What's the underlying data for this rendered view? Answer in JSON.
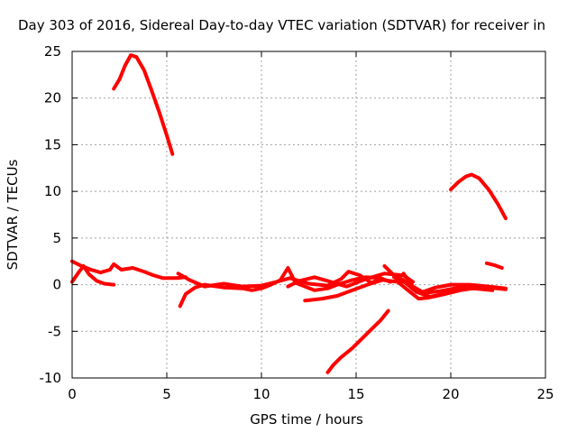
{
  "chart_data": {
    "type": "scatter",
    "title": "Day 303 of 2016, Sidereal Day-to-day VTEC variation (SDTVAR) for receiver in",
    "xlabel": "GPS time / hours",
    "ylabel": "SDTVAR / TECUs",
    "xlim": [
      0,
      25
    ],
    "ylim": [
      -10,
      25
    ],
    "xticks": [
      "0",
      "5",
      "10",
      "15",
      "20",
      "25"
    ],
    "yticks": [
      "-10",
      "-5",
      "0",
      "5",
      "10",
      "15",
      "20",
      "25"
    ],
    "grid": true,
    "series": [
      {
        "points": [
          [
            2.2,
            21.0
          ],
          [
            2.5,
            22.0
          ],
          [
            2.8,
            23.5
          ],
          [
            3.1,
            24.6
          ],
          [
            3.4,
            24.4
          ],
          [
            3.8,
            23.0
          ],
          [
            4.2,
            20.8
          ],
          [
            4.6,
            18.5
          ],
          [
            5.0,
            16.0
          ],
          [
            5.3,
            14.0
          ]
        ]
      },
      {
        "points": [
          [
            20.0,
            10.2
          ],
          [
            20.4,
            11.0
          ],
          [
            20.8,
            11.6
          ],
          [
            21.1,
            11.8
          ],
          [
            21.5,
            11.4
          ],
          [
            22.0,
            10.2
          ],
          [
            22.5,
            8.6
          ],
          [
            22.9,
            7.1
          ]
        ]
      },
      {
        "points": [
          [
            13.5,
            -9.4
          ],
          [
            13.8,
            -8.6
          ],
          [
            14.2,
            -7.8
          ],
          [
            14.8,
            -6.8
          ],
          [
            15.3,
            -5.8
          ],
          [
            15.8,
            -4.8
          ],
          [
            16.3,
            -3.8
          ],
          [
            16.7,
            -2.8
          ]
        ]
      },
      {
        "points": [
          [
            21.9,
            2.3
          ],
          [
            22.3,
            2.1
          ],
          [
            22.7,
            1.8
          ]
        ]
      },
      {
        "points": [
          [
            0.0,
            0.3
          ],
          [
            0.3,
            1.2
          ],
          [
            0.6,
            2.0
          ],
          [
            0.9,
            1.1
          ],
          [
            1.3,
            0.4
          ],
          [
            1.7,
            0.1
          ],
          [
            2.2,
            0.0
          ]
        ]
      },
      {
        "points": [
          [
            0.0,
            2.5
          ],
          [
            0.5,
            2.0
          ],
          [
            1.0,
            1.6
          ],
          [
            1.5,
            1.3
          ],
          [
            2.0,
            1.6
          ],
          [
            2.2,
            2.2
          ],
          [
            2.6,
            1.6
          ],
          [
            3.2,
            1.8
          ],
          [
            3.8,
            1.4
          ],
          [
            4.3,
            1.0
          ],
          [
            4.8,
            0.7
          ],
          [
            5.5,
            0.7
          ],
          [
            6.0,
            0.8
          ]
        ]
      },
      {
        "points": [
          [
            5.7,
            -2.3
          ],
          [
            6.0,
            -1.0
          ],
          [
            6.5,
            -0.3
          ],
          [
            7.0,
            0.0
          ],
          [
            8.0,
            -0.3
          ],
          [
            9.0,
            -0.4
          ],
          [
            9.5,
            -0.6
          ],
          [
            10.0,
            -0.4
          ],
          [
            10.5,
            0.0
          ],
          [
            11.0,
            0.5
          ],
          [
            11.4,
            1.8
          ],
          [
            11.8,
            0.2
          ],
          [
            12.3,
            -0.2
          ],
          [
            12.8,
            -0.6
          ],
          [
            13.5,
            -0.4
          ],
          [
            14.0,
            0.0
          ],
          [
            14.8,
            0.5
          ],
          [
            15.5,
            0.8
          ],
          [
            16.3,
            0.7
          ],
          [
            16.8,
            0.3
          ]
        ]
      },
      {
        "points": [
          [
            5.6,
            1.2
          ],
          [
            6.2,
            0.5
          ],
          [
            7.0,
            -0.2
          ],
          [
            8.0,
            0.1
          ],
          [
            9.0,
            -0.2
          ],
          [
            10.0,
            -0.1
          ],
          [
            10.8,
            0.3
          ],
          [
            11.5,
            0.7
          ],
          [
            12.5,
            0.1
          ],
          [
            13.5,
            -0.1
          ],
          [
            14.2,
            0.6
          ],
          [
            14.6,
            1.4
          ],
          [
            15.2,
            1.0
          ],
          [
            15.8,
            0.2
          ],
          [
            16.3,
            0.6
          ]
        ]
      },
      {
        "points": [
          [
            11.4,
            -0.2
          ],
          [
            12.0,
            0.4
          ],
          [
            12.8,
            0.8
          ],
          [
            13.5,
            0.4
          ],
          [
            14.5,
            -0.2
          ],
          [
            15.5,
            0.6
          ],
          [
            16.5,
            1.2
          ],
          [
            17.5,
            1.0
          ],
          [
            18.0,
            0.3
          ]
        ]
      },
      {
        "points": [
          [
            12.3,
            -1.7
          ],
          [
            13.2,
            -1.5
          ],
          [
            14.0,
            -1.2
          ],
          [
            14.8,
            -0.6
          ],
          [
            15.6,
            0.0
          ],
          [
            16.4,
            0.5
          ],
          [
            17.2,
            0.3
          ],
          [
            17.8,
            -0.7
          ],
          [
            18.3,
            -1.5
          ],
          [
            18.8,
            -1.4
          ],
          [
            19.5,
            -1.1
          ],
          [
            20.5,
            -0.6
          ],
          [
            21.5,
            -0.3
          ]
        ]
      },
      {
        "points": [
          [
            16.5,
            2.0
          ],
          [
            17.0,
            1.0
          ],
          [
            17.5,
            0.5
          ],
          [
            18.0,
            -0.5
          ],
          [
            18.5,
            -0.8
          ],
          [
            19.2,
            -0.3
          ],
          [
            20.0,
            0.0
          ],
          [
            21.0,
            0.0
          ],
          [
            22.0,
            -0.2
          ],
          [
            22.9,
            -0.4
          ]
        ]
      },
      {
        "points": [
          [
            17.5,
            1.2
          ],
          [
            18.0,
            -0.2
          ],
          [
            18.6,
            -0.9
          ],
          [
            19.4,
            -0.7
          ],
          [
            20.2,
            -0.4
          ],
          [
            21.0,
            -0.3
          ],
          [
            22.0,
            -0.3
          ],
          [
            22.9,
            -0.5
          ]
        ]
      },
      {
        "points": [
          [
            17.0,
            0.8
          ],
          [
            17.6,
            0.2
          ],
          [
            18.2,
            -0.8
          ],
          [
            18.9,
            -1.3
          ],
          [
            19.6,
            -1.0
          ],
          [
            20.4,
            -0.5
          ],
          [
            21.2,
            -0.4
          ],
          [
            22.2,
            -0.6
          ]
        ]
      }
    ]
  },
  "style": {
    "series_color": "#ff0000",
    "grid_color": "#a0a0a0",
    "frame_color": "#000000"
  }
}
